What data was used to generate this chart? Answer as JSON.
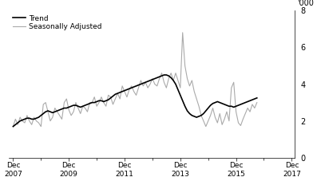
{
  "ylabel_right": "'000",
  "ylim": [
    0,
    8
  ],
  "yticks": [
    0,
    2,
    4,
    6,
    8
  ],
  "x_tick_years": [
    2007,
    2009,
    2011,
    2013,
    2015,
    2017
  ],
  "legend_labels": [
    "Trend",
    "Seasonally Adjusted"
  ],
  "trend_color": "#000000",
  "sa_color": "#aaaaaa",
  "trend_linewidth": 1.2,
  "sa_linewidth": 0.8,
  "background_color": "#ffffff",
  "trend_data": [
    1.7,
    1.8,
    1.9,
    2.0,
    2.05,
    2.1,
    2.15,
    2.15,
    2.1,
    2.1,
    2.15,
    2.2,
    2.3,
    2.4,
    2.5,
    2.55,
    2.5,
    2.45,
    2.5,
    2.55,
    2.6,
    2.65,
    2.7,
    2.7,
    2.75,
    2.8,
    2.85,
    2.85,
    2.8,
    2.75,
    2.8,
    2.85,
    2.9,
    2.95,
    3.0,
    3.0,
    3.05,
    3.1,
    3.1,
    3.05,
    3.1,
    3.15,
    3.25,
    3.35,
    3.45,
    3.5,
    3.55,
    3.6,
    3.65,
    3.7,
    3.75,
    3.8,
    3.85,
    3.9,
    3.95,
    4.0,
    4.05,
    4.1,
    4.15,
    4.2,
    4.25,
    4.3,
    4.35,
    4.4,
    4.45,
    4.5,
    4.5,
    4.45,
    4.35,
    4.2,
    4.0,
    3.7,
    3.4,
    3.1,
    2.8,
    2.55,
    2.4,
    2.3,
    2.25,
    2.2,
    2.25,
    2.3,
    2.4,
    2.55,
    2.7,
    2.85,
    2.95,
    3.0,
    3.05,
    3.0,
    2.95,
    2.9,
    2.85,
    2.8,
    2.8,
    2.75,
    2.8,
    2.85,
    2.9,
    2.95,
    3.0,
    3.05,
    3.1,
    3.15,
    3.2,
    3.25
  ],
  "sa_data": [
    1.7,
    2.1,
    1.8,
    2.2,
    2.0,
    1.9,
    2.3,
    2.0,
    1.8,
    2.2,
    2.0,
    1.9,
    1.7,
    2.9,
    3.0,
    2.5,
    2.0,
    2.2,
    2.7,
    2.5,
    2.3,
    2.1,
    3.0,
    3.2,
    2.6,
    2.3,
    2.5,
    3.0,
    2.7,
    2.4,
    2.8,
    2.7,
    2.5,
    3.0,
    3.0,
    3.3,
    2.8,
    3.0,
    3.3,
    3.0,
    2.8,
    3.4,
    3.3,
    2.9,
    3.2,
    3.5,
    3.2,
    3.9,
    3.6,
    3.3,
    3.7,
    3.9,
    3.6,
    3.4,
    3.8,
    4.2,
    3.9,
    4.1,
    3.8,
    4.0,
    4.3,
    4.0,
    3.9,
    4.3,
    4.6,
    4.1,
    3.8,
    4.3,
    4.6,
    4.2,
    4.6,
    4.2,
    3.8,
    6.8,
    5.0,
    4.3,
    3.9,
    4.2,
    3.6,
    3.2,
    2.8,
    2.3,
    2.0,
    1.7,
    2.0,
    2.3,
    2.7,
    2.2,
    1.9,
    2.4,
    1.8,
    2.1,
    2.5,
    2.0,
    3.8,
    4.1,
    2.5,
    1.9,
    1.75,
    2.1,
    2.4,
    2.7,
    2.5,
    2.9,
    2.7,
    3.0
  ]
}
